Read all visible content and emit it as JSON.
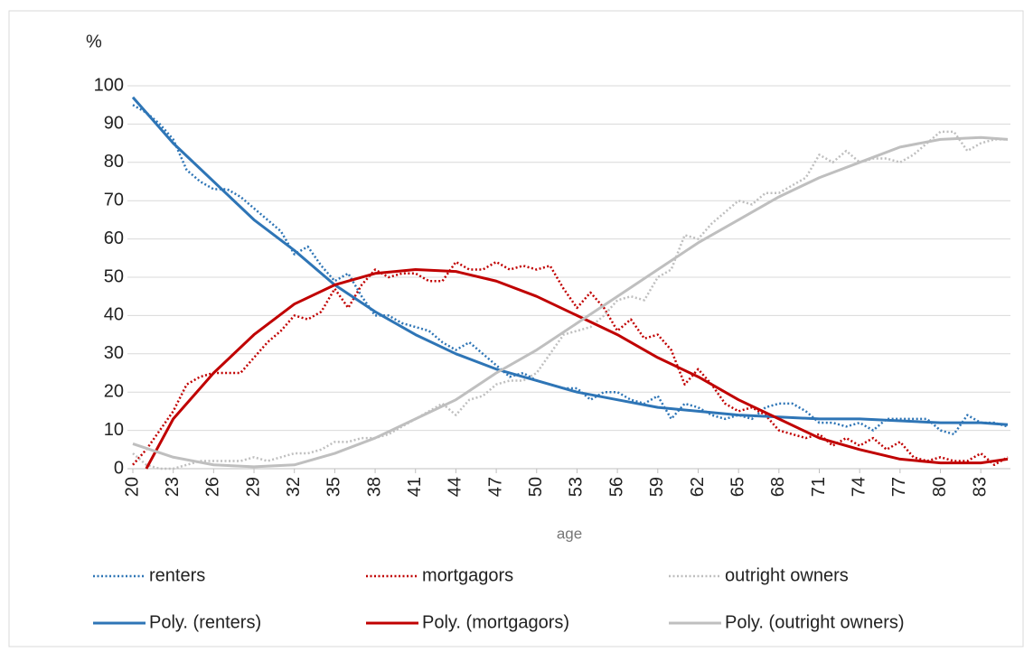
{
  "chart_data": {
    "type": "line",
    "y_unit_label": "%",
    "xlabel": "age",
    "x": [
      20,
      21,
      22,
      23,
      24,
      25,
      26,
      27,
      28,
      29,
      30,
      31,
      32,
      33,
      34,
      35,
      36,
      37,
      38,
      39,
      40,
      41,
      42,
      43,
      44,
      45,
      46,
      47,
      48,
      49,
      50,
      51,
      52,
      53,
      54,
      55,
      56,
      57,
      58,
      59,
      60,
      61,
      62,
      63,
      64,
      65,
      66,
      67,
      68,
      69,
      70,
      71,
      72,
      73,
      74,
      75,
      76,
      77,
      78,
      79,
      80,
      81,
      82,
      83,
      84,
      85
    ],
    "xlim": [
      20,
      85
    ],
    "xticks": [
      20,
      23,
      26,
      29,
      32,
      35,
      38,
      41,
      44,
      47,
      50,
      53,
      56,
      59,
      62,
      65,
      68,
      71,
      74,
      77,
      80,
      83
    ],
    "ylim": [
      0,
      100
    ],
    "yticks": [
      0,
      10,
      20,
      30,
      40,
      50,
      60,
      70,
      80,
      90,
      100
    ],
    "grid": true,
    "series": [
      {
        "name": "renters",
        "color": "#2e75b6",
        "line_style": "dotted",
        "values": [
          95,
          93,
          90,
          86,
          78,
          75,
          73,
          73,
          71,
          68,
          65,
          62,
          56,
          58,
          53,
          49,
          51,
          45,
          40,
          40,
          38,
          37,
          36,
          33,
          31,
          33,
          30,
          27,
          24,
          25,
          23,
          22,
          21,
          21,
          18,
          20,
          20,
          18,
          17,
          19,
          13,
          17,
          16,
          14,
          13,
          14,
          13,
          16,
          17,
          17,
          15,
          12,
          12,
          11,
          12,
          10,
          13,
          13,
          13,
          13,
          10,
          9,
          14,
          12,
          12,
          11
        ]
      },
      {
        "name": "mortgagors",
        "color": "#c00000",
        "line_style": "dotted",
        "values": [
          1,
          5,
          10,
          15,
          22,
          24,
          25,
          25,
          25,
          29,
          33,
          36,
          40,
          39,
          41,
          47,
          42,
          48,
          52,
          50,
          51,
          51,
          49,
          49,
          54,
          52,
          52,
          54,
          52,
          53,
          52,
          53,
          47,
          42,
          46,
          42,
          36,
          39,
          34,
          35,
          31,
          22,
          26,
          22,
          17,
          15,
          16,
          14,
          10,
          9,
          8,
          9,
          6,
          8,
          6,
          8,
          5,
          7,
          3,
          2,
          3,
          2,
          2,
          4,
          1,
          3
        ]
      },
      {
        "name": "outright owners",
        "color": "#bfbfbf",
        "line_style": "dotted",
        "values": [
          4,
          1,
          0,
          0,
          1,
          2,
          2,
          2,
          2,
          3,
          2,
          3,
          4,
          4,
          5,
          7,
          7,
          8,
          8,
          9,
          11,
          13,
          15,
          17,
          14,
          18,
          19,
          22,
          23,
          23,
          25,
          30,
          35,
          36,
          37,
          40,
          44,
          45,
          44,
          50,
          52,
          61,
          60,
          64,
          67,
          70,
          69,
          72,
          72,
          74,
          76,
          82,
          80,
          83,
          80,
          81,
          81,
          80,
          82,
          85,
          88,
          88,
          83,
          85,
          86,
          86
        ]
      },
      {
        "name": "Poly. (renters)",
        "color": "#2e75b6",
        "line_style": "solid",
        "x": [
          20,
          23,
          26,
          29,
          32,
          35,
          38,
          41,
          44,
          47,
          50,
          53,
          56,
          59,
          62,
          65,
          68,
          71,
          74,
          77,
          80,
          83,
          85
        ],
        "values": [
          97,
          85,
          75,
          65,
          57,
          48,
          41,
          35,
          30,
          26,
          23,
          20,
          18,
          16,
          15,
          14,
          13.5,
          13,
          13,
          12.5,
          12,
          12,
          11.5
        ]
      },
      {
        "name": "Poly. (mortgagors)",
        "color": "#c00000",
        "line_style": "solid",
        "x": [
          21,
          23,
          26,
          29,
          32,
          35,
          38,
          41,
          44,
          47,
          50,
          53,
          56,
          59,
          62,
          65,
          68,
          71,
          74,
          77,
          80,
          83,
          85
        ],
        "values": [
          0,
          13,
          25,
          35,
          43,
          48,
          51,
          52,
          51.5,
          49,
          45,
          40,
          35,
          29,
          24,
          18,
          13,
          8,
          5,
          2.5,
          1.5,
          1.5,
          2.5
        ]
      },
      {
        "name": "Poly. (outright owners)",
        "color": "#bfbfbf",
        "line_style": "solid",
        "x": [
          20,
          23,
          26,
          29,
          32,
          35,
          38,
          41,
          44,
          47,
          50,
          53,
          56,
          59,
          62,
          65,
          68,
          71,
          74,
          77,
          80,
          83,
          85
        ],
        "values": [
          6.5,
          3,
          1,
          0.5,
          1,
          4,
          8,
          13,
          18,
          25,
          31,
          38,
          45,
          52,
          59,
          65,
          71,
          76,
          80,
          84,
          86,
          86.5,
          86
        ]
      }
    ]
  }
}
